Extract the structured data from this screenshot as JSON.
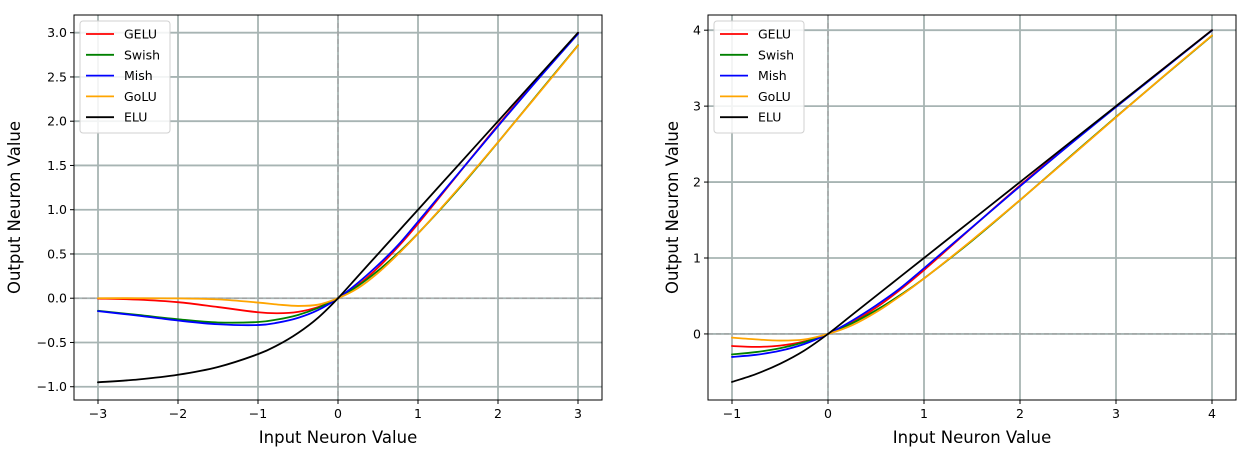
{
  "chart_data": [
    {
      "type": "line",
      "xlabel": "Input Neuron Value",
      "ylabel": "Output Neuron Value",
      "xlim": [
        -3.3,
        3.3
      ],
      "ylim": [
        -1.15,
        3.2
      ],
      "xticks": [
        -3,
        -2,
        -1,
        0,
        1,
        2,
        3
      ],
      "yticks": [
        -1.0,
        -0.5,
        0.0,
        0.5,
        1.0,
        1.5,
        2.0,
        2.5,
        3.0
      ],
      "xtick_labels": [
        "−3",
        "−2",
        "−1",
        "0",
        "1",
        "2",
        "3"
      ],
      "ytick_labels": [
        "−1.0",
        "−0.5",
        "0.0",
        "0.5",
        "1.0",
        "1.5",
        "2.0",
        "2.5",
        "3.0"
      ],
      "grid": true,
      "legend_position": "top-left",
      "x": [
        -3,
        -2.5,
        -2,
        -1.5,
        -1,
        -0.75,
        -0.5,
        -0.25,
        0,
        0.25,
        0.5,
        0.75,
        1,
        1.5,
        2,
        2.5,
        3
      ],
      "series": [
        {
          "name": "GELU",
          "color": "#ff0000",
          "values": [
            -0.004,
            -0.016,
            -0.045,
            -0.1,
            -0.159,
            -0.17,
            -0.154,
            -0.1,
            0,
            0.15,
            0.346,
            0.58,
            0.841,
            1.4,
            1.955,
            2.484,
            2.996
          ]
        },
        {
          "name": "Swish",
          "color": "#008000",
          "values": [
            -0.142,
            -0.189,
            -0.238,
            -0.274,
            -0.269,
            -0.239,
            -0.189,
            -0.11,
            0,
            0.14,
            0.311,
            0.509,
            0.731,
            1.227,
            1.762,
            2.311,
            2.858
          ]
        },
        {
          "name": "Mish",
          "color": "#0000ff",
          "values": [
            -0.146,
            -0.197,
            -0.252,
            -0.294,
            -0.303,
            -0.275,
            -0.222,
            -0.134,
            0,
            0.174,
            0.375,
            0.6,
            0.865,
            1.404,
            1.944,
            2.474,
            2.987
          ]
        },
        {
          "name": "GoLU",
          "color": "#ffa500",
          "values": [
            0.0,
            -0.0,
            -0.002,
            -0.013,
            -0.049,
            -0.072,
            -0.087,
            -0.073,
            0,
            0.114,
            0.286,
            0.497,
            0.729,
            1.235,
            1.763,
            2.305,
            2.853
          ]
        },
        {
          "name": "ELU",
          "color": "#000000",
          "values": [
            -0.95,
            -0.918,
            -0.865,
            -0.777,
            -0.632,
            -0.528,
            -0.393,
            -0.221,
            0,
            0.25,
            0.5,
            0.75,
            1,
            1.5,
            2,
            2.5,
            3
          ]
        }
      ]
    },
    {
      "type": "line",
      "xlabel": "Input Neuron Value",
      "ylabel": "Output Neuron Value",
      "xlim": [
        -1.25,
        4.25
      ],
      "ylim": [
        -0.87,
        4.2
      ],
      "xticks": [
        -1,
        0,
        1,
        2,
        3,
        4
      ],
      "yticks": [
        0,
        1,
        2,
        3,
        4
      ],
      "xtick_labels": [
        "−1",
        "0",
        "1",
        "2",
        "3",
        "4"
      ],
      "ytick_labels": [
        "0",
        "1",
        "2",
        "3",
        "4"
      ],
      "grid": true,
      "legend_position": "top-left",
      "x": [
        -1,
        -0.75,
        -0.5,
        -0.25,
        0,
        0.25,
        0.5,
        0.75,
        1,
        1.5,
        2,
        2.5,
        3,
        3.5,
        4
      ],
      "series": [
        {
          "name": "GELU",
          "color": "#ff0000",
          "values": [
            -0.159,
            -0.17,
            -0.154,
            -0.1,
            0,
            0.15,
            0.346,
            0.58,
            0.841,
            1.4,
            1.955,
            2.484,
            2.996,
            3.499,
            4.0
          ]
        },
        {
          "name": "Swish",
          "color": "#008000",
          "values": [
            -0.269,
            -0.239,
            -0.189,
            -0.11,
            0,
            0.14,
            0.311,
            0.509,
            0.731,
            1.227,
            1.762,
            2.311,
            2.858,
            3.396,
            3.928
          ]
        },
        {
          "name": "Mish",
          "color": "#0000ff",
          "values": [
            -0.303,
            -0.275,
            -0.222,
            -0.134,
            0,
            0.174,
            0.375,
            0.6,
            0.865,
            1.404,
            1.944,
            2.474,
            2.987,
            3.491,
            3.997
          ]
        },
        {
          "name": "GoLU",
          "color": "#ffa500",
          "values": [
            -0.049,
            -0.072,
            -0.087,
            -0.073,
            0,
            0.114,
            0.286,
            0.497,
            0.729,
            1.235,
            1.763,
            2.305,
            2.853,
            3.398,
            3.931
          ]
        },
        {
          "name": "ELU",
          "color": "#000000",
          "values": [
            -0.632,
            -0.528,
            -0.393,
            -0.221,
            0,
            0.25,
            0.5,
            0.75,
            1,
            1.5,
            2,
            2.5,
            3,
            3.5,
            4
          ]
        }
      ]
    }
  ]
}
